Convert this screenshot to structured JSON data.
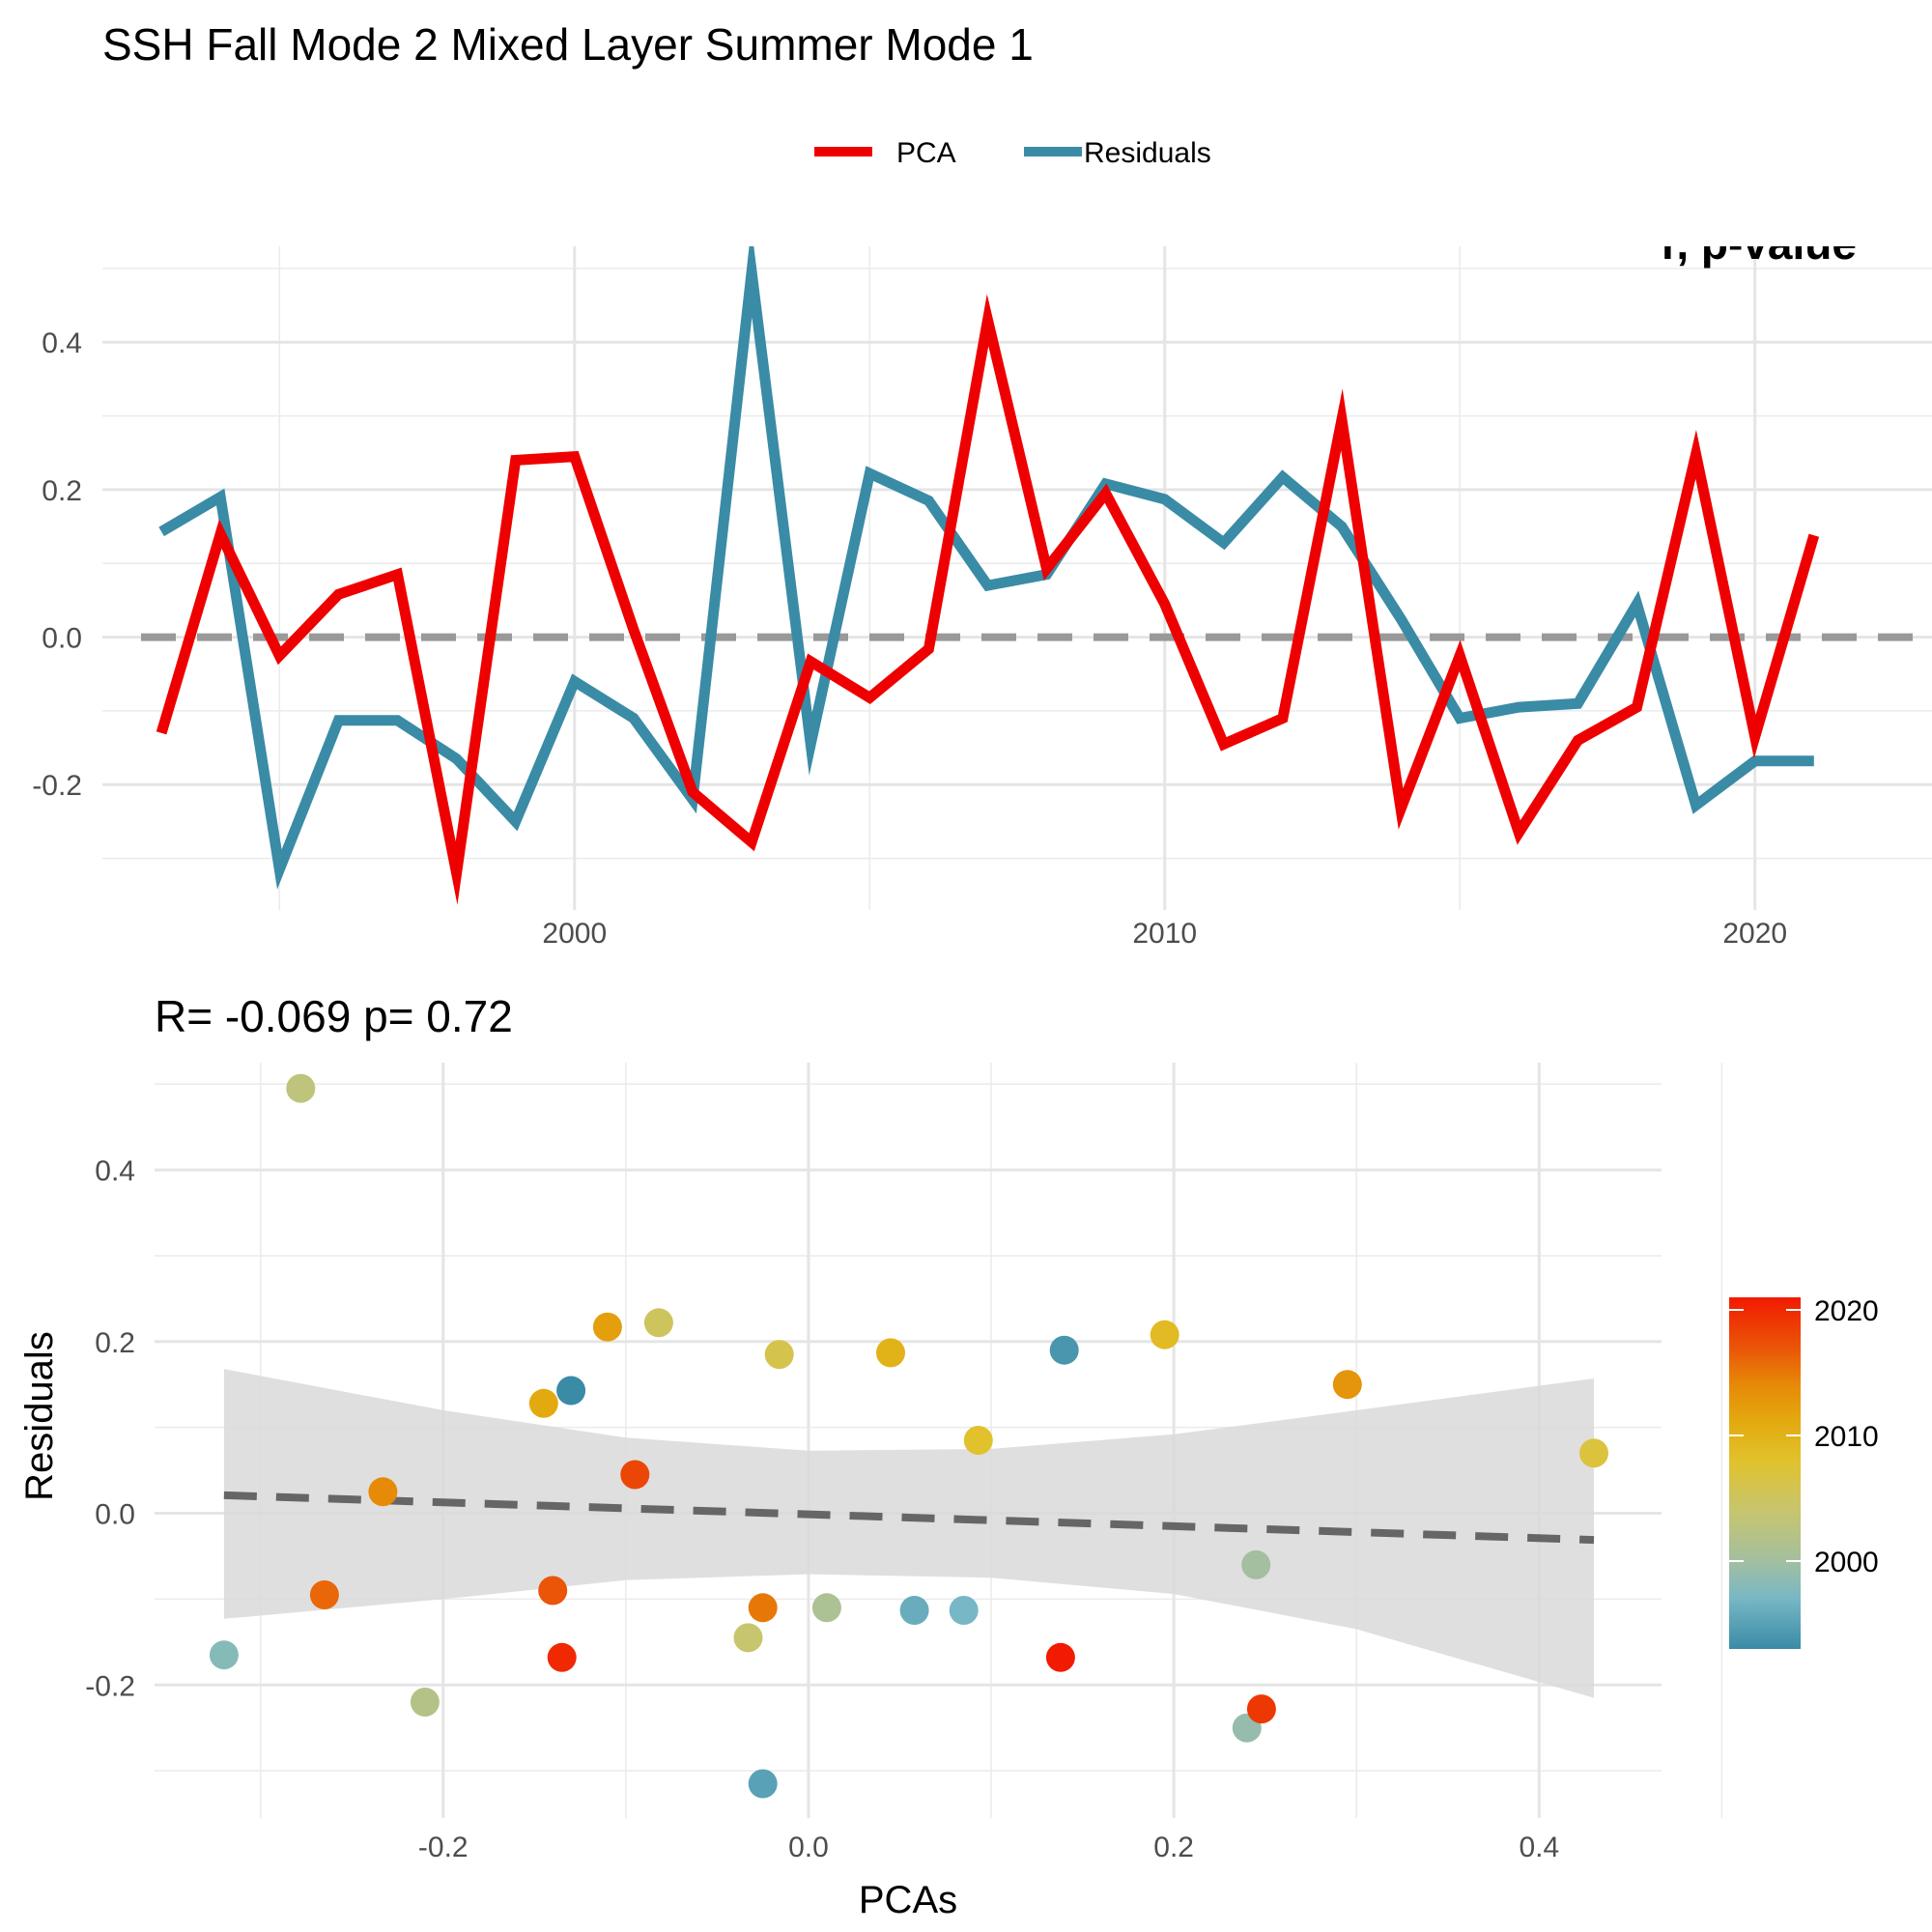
{
  "title": "SSH Fall Mode 2 Mixed Layer Summer Mode 1",
  "chart_data": [
    {
      "type": "line",
      "legend": {
        "entries": [
          "PCA",
          "Residuals"
        ],
        "placement": "top"
      },
      "overflow_label": "r, p-value",
      "x": [
        1993,
        1994,
        1995,
        1996,
        1997,
        1998,
        1999,
        2000,
        2001,
        2002,
        2003,
        2004,
        2005,
        2006,
        2007,
        2008,
        2009,
        2010,
        2011,
        2012,
        2013,
        2014,
        2015,
        2016,
        2017,
        2018,
        2019,
        2020,
        2021
      ],
      "series": [
        {
          "name": "PCA",
          "color": "#EE0000",
          "values": [
            -0.13,
            0.14,
            -0.025,
            0.058,
            0.085,
            -0.32,
            0.24,
            0.245,
            0.01,
            -0.21,
            -0.278,
            -0.033,
            -0.082,
            -0.016,
            0.43,
            0.093,
            0.195,
            0.045,
            -0.145,
            -0.11,
            0.295,
            -0.233,
            -0.025,
            -0.265,
            -0.14,
            -0.095,
            0.248,
            -0.135,
            0.138
          ]
        },
        {
          "name": "Residuals",
          "color": "#3A8BA6",
          "values": [
            0.143,
            0.19,
            -0.315,
            -0.113,
            -0.113,
            -0.165,
            -0.25,
            -0.06,
            -0.11,
            -0.22,
            0.495,
            -0.145,
            0.222,
            0.185,
            0.07,
            0.085,
            0.208,
            0.187,
            0.128,
            0.217,
            0.15,
            0.025,
            -0.11,
            -0.095,
            -0.09,
            0.045,
            -0.228,
            -0.168,
            -0.168
          ]
        }
      ],
      "reference_line": {
        "y": 0,
        "style": "dashed",
        "color": "#999999"
      },
      "xlim": [
        1992,
        2023
      ],
      "ylim": [
        -0.37,
        0.53
      ],
      "xticks": [
        2000,
        2010,
        2020
      ],
      "yticks": [
        -0.2,
        0.0,
        0.2,
        0.4
      ],
      "ytick_labels": [
        "-0.2",
        "0.0",
        "0.2",
        "0.4"
      ],
      "grid": true
    },
    {
      "type": "scatter",
      "subtitle": "R= -0.069  p= 0.72",
      "xlabel": "PCAs",
      "ylabel": "Residuals",
      "xlim": [
        -0.358,
        0.467
      ],
      "ylim": [
        -0.355,
        0.525
      ],
      "xticks": [
        -0.2,
        0.0,
        0.2,
        0.4
      ],
      "xtick_labels": [
        "-0.2",
        "0.0",
        "0.2",
        "0.4"
      ],
      "yticks": [
        -0.2,
        0.0,
        0.2,
        0.4
      ],
      "ytick_labels": [
        "-0.2",
        "0.0",
        "0.2",
        "0.4"
      ],
      "grid": true,
      "points_from": "line chart series PCA (x) and Residuals (y), colored by year",
      "fit_line": {
        "style": "dashed",
        "color": "#666666",
        "x": [
          -0.32,
          0.43
        ],
        "y": [
          0.021,
          -0.031
        ]
      },
      "confidence_band": {
        "color": "#d9d9d9",
        "x": [
          -0.32,
          -0.2,
          -0.1,
          0.0,
          0.1,
          0.2,
          0.3,
          0.43
        ],
        "upper": [
          0.168,
          0.12,
          0.088,
          0.073,
          0.075,
          0.092,
          0.12,
          0.157
        ],
        "lower": [
          -0.123,
          -0.1,
          -0.078,
          -0.071,
          -0.075,
          -0.094,
          -0.135,
          -0.215
        ]
      },
      "colorbar": {
        "range": [
          1993,
          2021
        ],
        "ticks": [
          2000,
          2010,
          2020
        ],
        "stops": [
          {
            "value": 1993,
            "color": "#3A8BA6"
          },
          {
            "value": 1997,
            "color": "#78B7C5"
          },
          {
            "value": 2000,
            "color": "#A3BFA0"
          },
          {
            "value": 2004,
            "color": "#C7C56E"
          },
          {
            "value": 2008,
            "color": "#E1C22C"
          },
          {
            "value": 2011,
            "color": "#E3AA10"
          },
          {
            "value": 2014,
            "color": "#E68A08"
          },
          {
            "value": 2017,
            "color": "#EA5508"
          },
          {
            "value": 2021,
            "color": "#F21A00"
          }
        ]
      }
    }
  ]
}
